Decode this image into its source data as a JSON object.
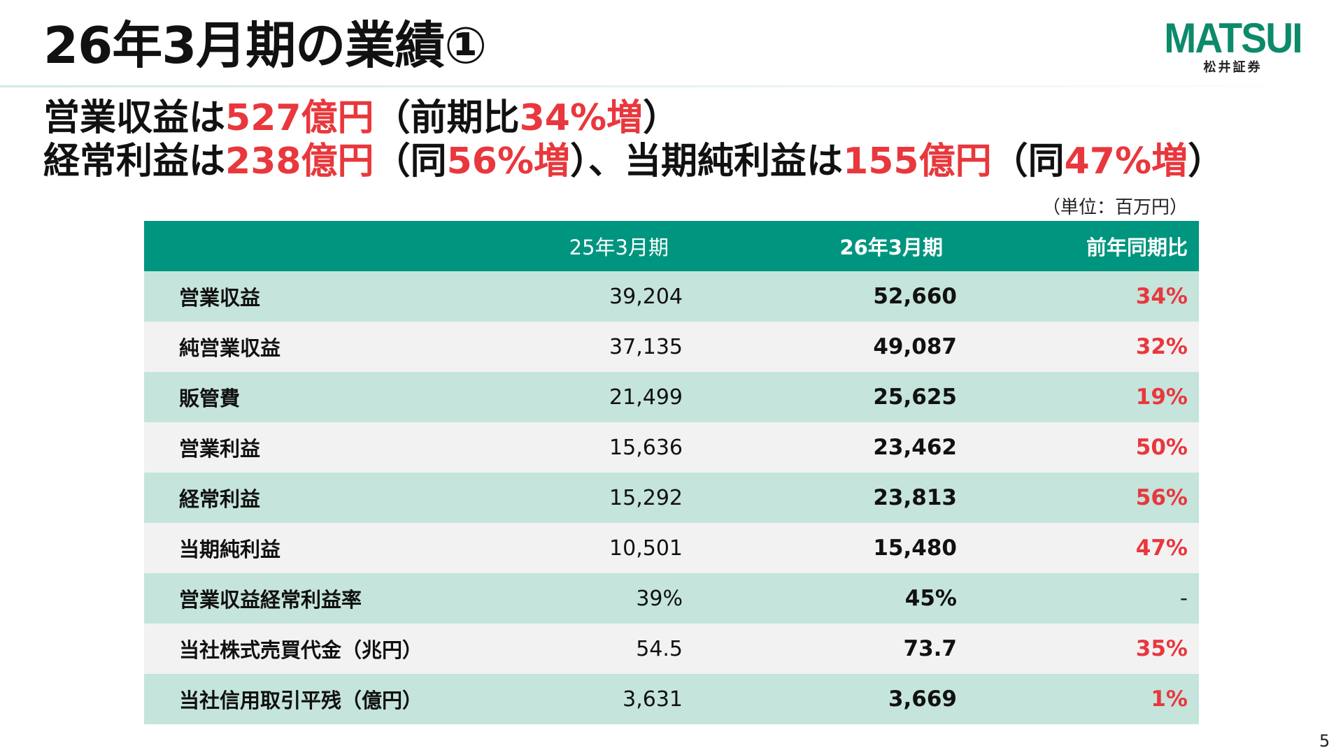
{
  "slide": {
    "title": "26年3月期の業績①",
    "page_number": "5"
  },
  "logo": {
    "word": "MATSUI",
    "sub": "松井証券"
  },
  "headline": {
    "line1": [
      {
        "text": "営業収益は",
        "highlight": false
      },
      {
        "text": "527億円",
        "highlight": true
      },
      {
        "text": "（前期比",
        "highlight": false
      },
      {
        "text": "34%増",
        "highlight": true
      },
      {
        "text": "）",
        "highlight": false
      }
    ],
    "line2": [
      {
        "text": "経常利益は",
        "highlight": false
      },
      {
        "text": "238億円",
        "highlight": true
      },
      {
        "text": "（同",
        "highlight": false
      },
      {
        "text": "56%増",
        "highlight": true
      },
      {
        "text": "）、当期純利益は",
        "highlight": false
      },
      {
        "text": "155億円",
        "highlight": true
      },
      {
        "text": "（同",
        "highlight": false
      },
      {
        "text": "47%増",
        "highlight": true
      },
      {
        "text": "）",
        "highlight": false
      }
    ]
  },
  "unit_note": "（単位：百万円）",
  "colors": {
    "header_green": "#00957f",
    "row_shade": "#c5e4dc",
    "row_plain": "#f2f2f2",
    "accent_red": "#e8383d",
    "logo_green": "#0d8a6a"
  },
  "table": {
    "headers": {
      "label": "",
      "prev": "25年3月期",
      "curr": "26年3月期",
      "ratio": "前年同期比"
    },
    "rows": [
      {
        "label": "営業収益",
        "prev": "39,204",
        "curr": "52,660",
        "ratio": "34%"
      },
      {
        "label": "純営業収益",
        "prev": "37,135",
        "curr": "49,087",
        "ratio": "32%"
      },
      {
        "label": "販管費",
        "prev": "21,499",
        "curr": "25,625",
        "ratio": "19%"
      },
      {
        "label": "営業利益",
        "prev": "15,636",
        "curr": "23,462",
        "ratio": "50%"
      },
      {
        "label": "経常利益",
        "prev": "15,292",
        "curr": "23,813",
        "ratio": "56%"
      },
      {
        "label": "当期純利益",
        "prev": "10,501",
        "curr": "15,480",
        "ratio": "47%"
      },
      {
        "label": "営業収益経常利益率",
        "prev": "39%",
        "curr": "45%",
        "ratio": "-"
      },
      {
        "label": "当社株式売買代金（兆円）",
        "prev": "54.5",
        "curr": "73.7",
        "ratio": "35%"
      },
      {
        "label": "当社信用取引平残（億円）",
        "prev": "3,631",
        "curr": "3,669",
        "ratio": "1%"
      }
    ]
  }
}
